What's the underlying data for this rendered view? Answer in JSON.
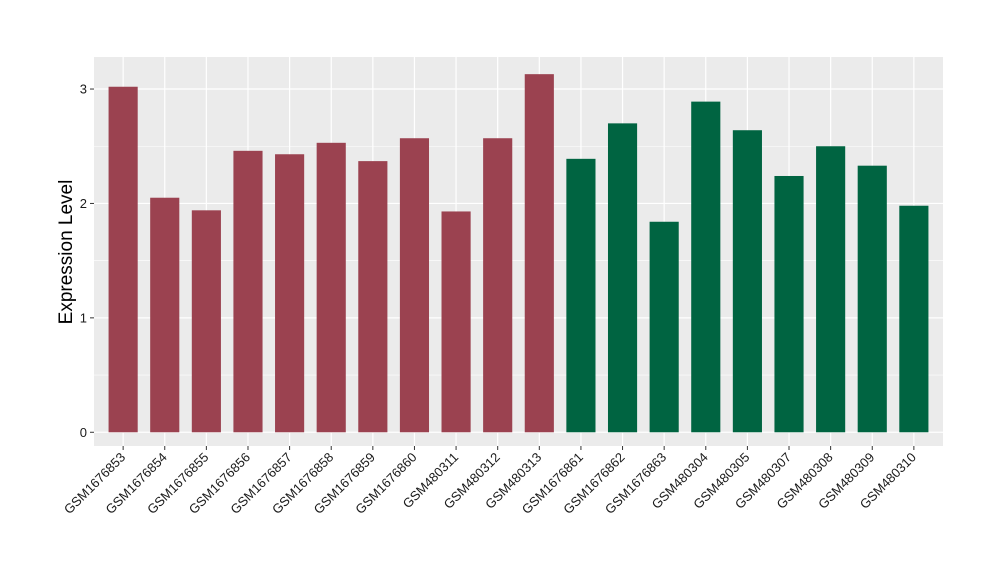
{
  "chart_data": {
    "type": "bar",
    "xlabel": "",
    "ylabel": "Expression Level",
    "ylim": [
      -0.12,
      3.28
    ],
    "yticks": [
      0,
      1,
      2,
      3
    ],
    "grid": true,
    "categories": [
      "GSM1676853",
      "GSM1676854",
      "GSM1676855",
      "GSM1676856",
      "GSM1676857",
      "GSM1676858",
      "GSM1676859",
      "GSM1676860",
      "GSM480311",
      "GSM480312",
      "GSM480313",
      "GSM1676861",
      "GSM1676862",
      "GSM1676863",
      "GSM480304",
      "GSM480305",
      "GSM480307",
      "GSM480308",
      "GSM480309",
      "GSM480310"
    ],
    "values": [
      3.02,
      2.05,
      1.94,
      2.46,
      2.43,
      2.53,
      2.37,
      2.57,
      1.93,
      2.57,
      3.13,
      2.39,
      2.7,
      1.84,
      2.89,
      2.64,
      2.24,
      2.5,
      2.33,
      1.98
    ],
    "groups": [
      0,
      0,
      0,
      0,
      0,
      0,
      0,
      0,
      0,
      0,
      0,
      1,
      1,
      1,
      1,
      1,
      1,
      1,
      1,
      1
    ],
    "group_colors": [
      "#9b4250",
      "#006441"
    ],
    "panel_background": "#ebebeb"
  }
}
